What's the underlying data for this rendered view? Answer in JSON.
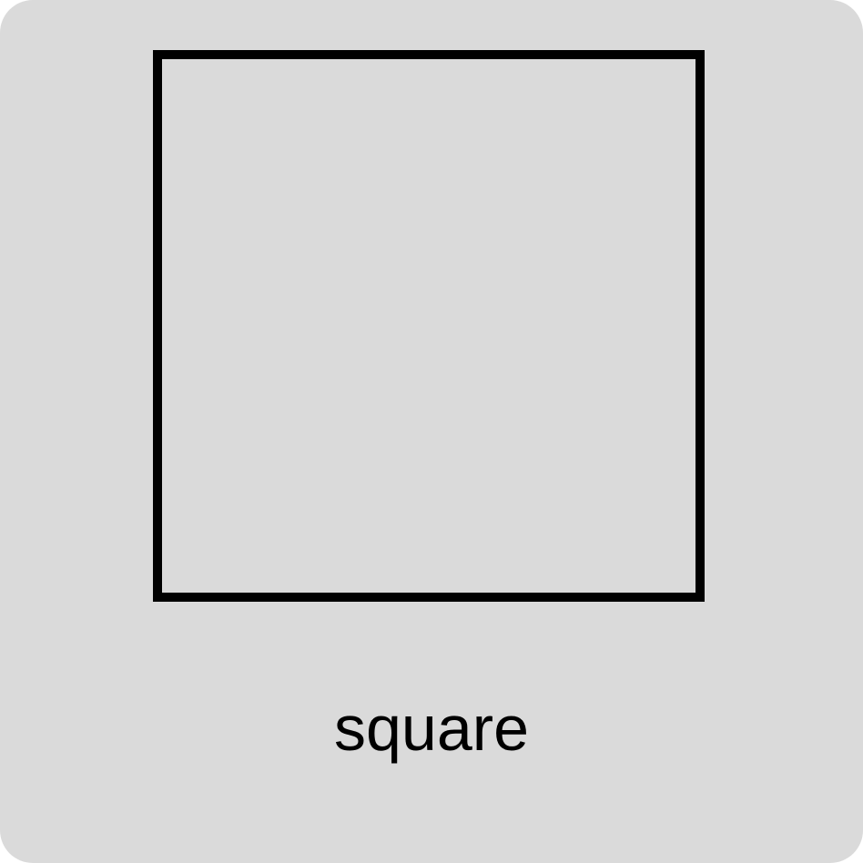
{
  "card": {
    "shape_icon": "square-outline",
    "label": "square"
  }
}
